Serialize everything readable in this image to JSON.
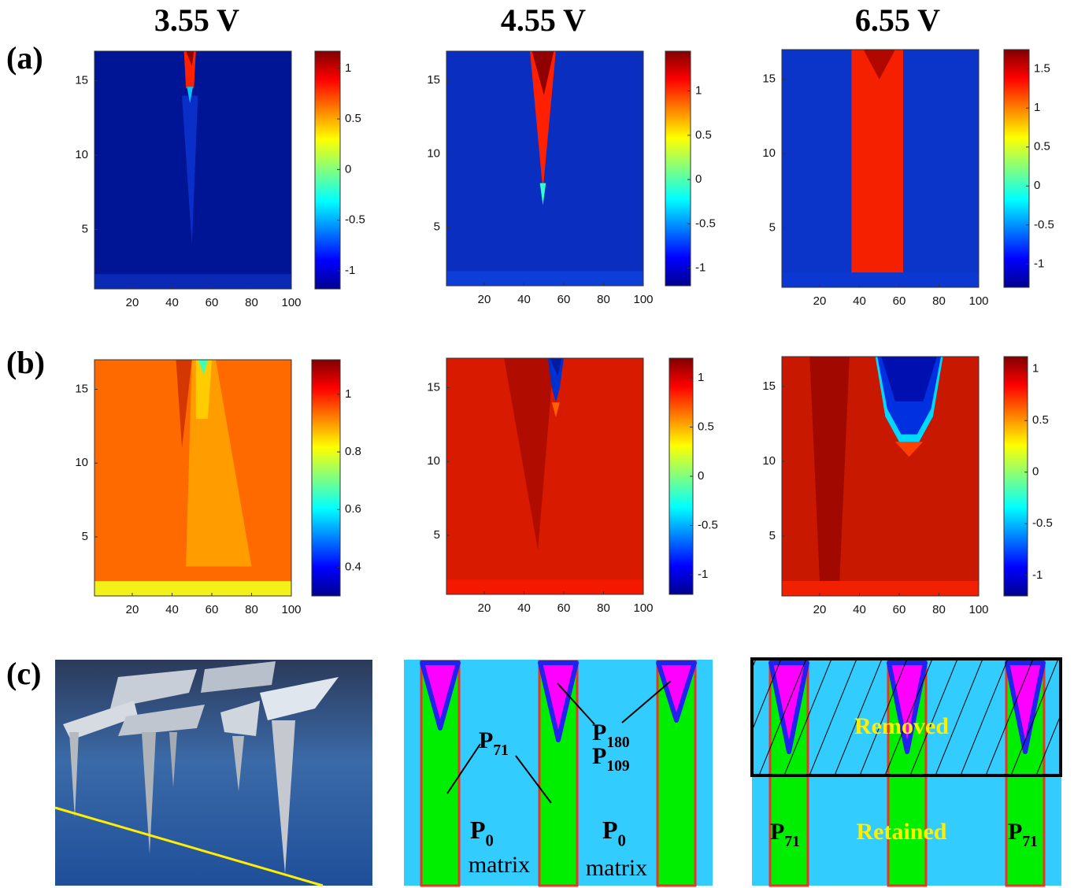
{
  "column_titles": [
    "3.55 V",
    "4.55 V",
    "6.55 V"
  ],
  "row_labels": [
    "(a)",
    "(b)",
    "(c)"
  ],
  "maps": [
    {
      "xlim": [
        1,
        100
      ],
      "ylim": [
        1,
        17
      ],
      "xticks": [
        20,
        40,
        60,
        80,
        100
      ],
      "yticks": [
        5,
        10,
        15
      ],
      "clim": [
        -1.18,
        1.17
      ],
      "cticks": [
        -1,
        -0.5,
        0,
        0.5,
        1
      ]
    },
    {
      "xlim": [
        1,
        100
      ],
      "ylim": [
        1,
        17
      ],
      "xticks": [
        20,
        40,
        60,
        80,
        100
      ],
      "yticks": [
        5,
        10,
        15
      ],
      "clim": [
        -1.2,
        1.45
      ],
      "cticks": [
        -1,
        -0.5,
        0,
        0.5,
        1
      ]
    },
    {
      "xlim": [
        1,
        100
      ],
      "ylim": [
        1,
        17
      ],
      "xticks": [
        20,
        40,
        60,
        80,
        100
      ],
      "yticks": [
        5,
        10,
        15
      ],
      "clim": [
        -1.3,
        1.75
      ],
      "cticks": [
        -1,
        -0.5,
        0,
        0.5,
        1,
        1.5
      ]
    },
    {
      "xlim": [
        1,
        100
      ],
      "ylim": [
        1,
        17
      ],
      "xticks": [
        20,
        40,
        60,
        80,
        100
      ],
      "yticks": [
        5,
        10,
        15
      ],
      "clim": [
        0.3,
        1.12
      ],
      "cticks": [
        0.4,
        0.6,
        0.8,
        1
      ]
    },
    {
      "xlim": [
        1,
        100
      ],
      "ylim": [
        1,
        17
      ],
      "xticks": [
        20,
        40,
        60,
        80,
        100
      ],
      "yticks": [
        5,
        10,
        15
      ],
      "clim": [
        -1.2,
        1.2
      ],
      "cticks": [
        -1,
        -0.5,
        0,
        0.5,
        1
      ]
    },
    {
      "xlim": [
        1,
        100
      ],
      "ylim": [
        1,
        17
      ],
      "xticks": [
        20,
        40,
        60,
        80,
        100
      ],
      "yticks": [
        5,
        10,
        15
      ],
      "clim": [
        -1.2,
        1.12
      ],
      "cticks": [
        -1,
        -0.5,
        0,
        0.5,
        1
      ]
    }
  ],
  "panel_c": {
    "middle": {
      "p71": {
        "symbol": "P",
        "sub": "71"
      },
      "p180": {
        "symbol": "P",
        "sub": "180"
      },
      "p109": {
        "symbol": "P",
        "sub": "109"
      },
      "p0": {
        "symbol": "P",
        "sub": "0"
      },
      "matrix": "matrix"
    },
    "right": {
      "removed": "Removed",
      "retained": "Retained",
      "p71": {
        "symbol": "P",
        "sub": "71"
      }
    }
  }
}
